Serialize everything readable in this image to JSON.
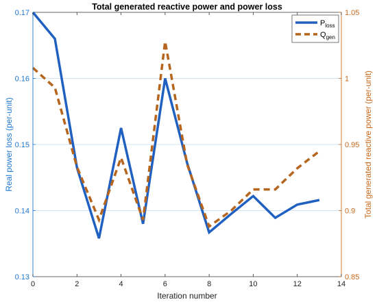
{
  "chart_data": {
    "type": "line",
    "title": "Total generated reactive power and power loss",
    "xlabel": "Iteration number",
    "ylabel_left": "Real power loss (per-unit)",
    "ylabel_right": "Total generated reactive power (per-unit)",
    "xlim": [
      0,
      14
    ],
    "ylim_left": [
      0.13,
      0.17
    ],
    "ylim_right": [
      0.85,
      1.05
    ],
    "x_ticks": [
      "0",
      "2",
      "4",
      "6",
      "8",
      "10",
      "12",
      "14"
    ],
    "y_left_ticks": [
      "0.13",
      "0.14",
      "0.15",
      "0.16",
      "0.17"
    ],
    "y_right_ticks": [
      "0.85",
      "0.9",
      "0.95",
      "1",
      "1.05"
    ],
    "left_axis_color": "#1f77d0",
    "right_axis_color": "#c8691c",
    "legend": {
      "position": "top-right",
      "p_main": "P",
      "p_sub": "loss",
      "q_main": "Q",
      "q_sub": "gen"
    },
    "series": [
      {
        "name": "Ploss",
        "axis": "left",
        "style": "solid",
        "color": "#2060c0",
        "x": [
          0,
          1,
          2,
          3,
          4,
          5,
          6,
          7,
          8,
          9,
          10,
          11,
          12,
          13
        ],
        "values": [
          0.17,
          0.166,
          0.1465,
          0.1358,
          0.1525,
          0.138,
          0.16,
          0.1472,
          0.1367,
          0.1395,
          0.1422,
          0.1389,
          0.1409,
          0.1416
        ]
      },
      {
        "name": "Qgen",
        "axis": "right",
        "style": "dashed",
        "color": "#b5651d",
        "x": [
          0,
          1,
          2,
          3,
          4,
          5,
          6,
          7,
          8,
          9,
          10,
          11,
          12,
          13
        ],
        "values": [
          1.008,
          0.993,
          0.933,
          0.893,
          0.94,
          0.893,
          1.028,
          0.935,
          0.888,
          0.9,
          0.916,
          0.916,
          0.932,
          0.945
        ]
      }
    ]
  }
}
